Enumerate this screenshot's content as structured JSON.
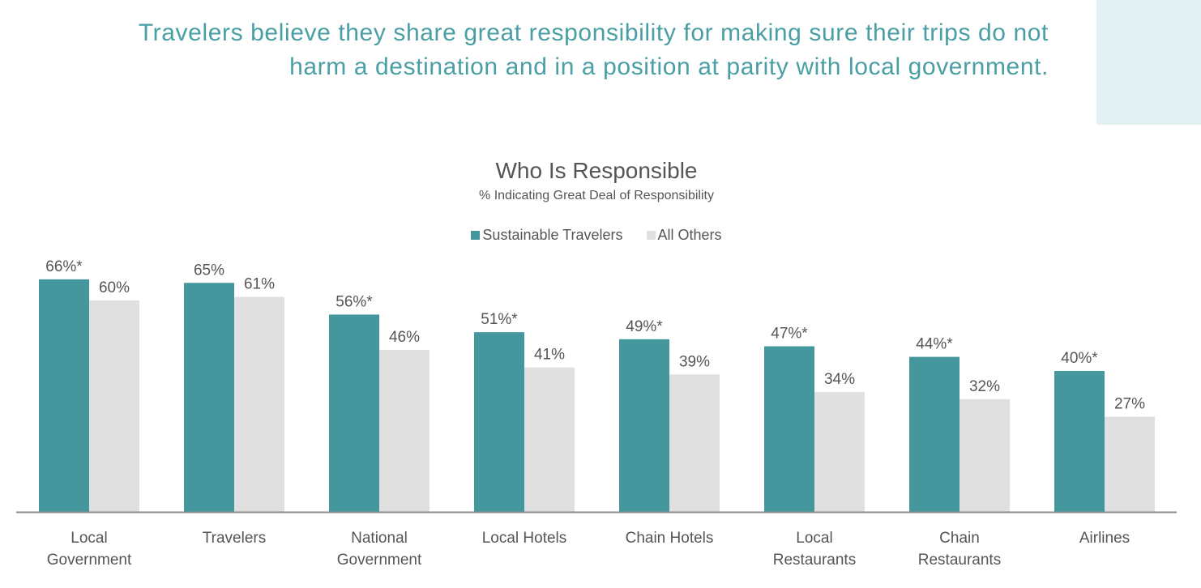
{
  "headline": {
    "line1": "Travelers believe they share great responsibility for making sure their trips do not",
    "line2": "harm a destination and in a position at parity with local government."
  },
  "colors": {
    "series1": "#45979e",
    "series2": "#e0e0e0",
    "accent_box": "#e3f1f2",
    "headline": "#4a9fa4"
  },
  "chart_data": {
    "type": "bar",
    "title": "Who Is Responsible",
    "subtitle": "% Indicating Great Deal of Responsibility",
    "legend_position": "top",
    "grid": false,
    "ylim": [
      0,
      70
    ],
    "categories": [
      [
        "Local",
        "Government"
      ],
      [
        "Travelers"
      ],
      [
        "National",
        "Government"
      ],
      [
        "Local Hotels"
      ],
      [
        "Chain Hotels"
      ],
      [
        "Local",
        "Restaurants"
      ],
      [
        "Chain",
        "Restaurants"
      ],
      [
        "Airlines"
      ]
    ],
    "series": [
      {
        "name": "Sustainable Travelers",
        "values": [
          66,
          65,
          56,
          51,
          49,
          47,
          44,
          40
        ],
        "labels": [
          "66%*",
          "65%",
          "56%*",
          "51%*",
          "49%*",
          "47%*",
          "44%*",
          "40%*"
        ]
      },
      {
        "name": "All Others",
        "values": [
          60,
          61,
          46,
          41,
          39,
          34,
          32,
          27
        ],
        "labels": [
          "60%",
          "61%",
          "46%",
          "41%",
          "39%",
          "34%",
          "32%",
          "27%"
        ]
      }
    ]
  }
}
